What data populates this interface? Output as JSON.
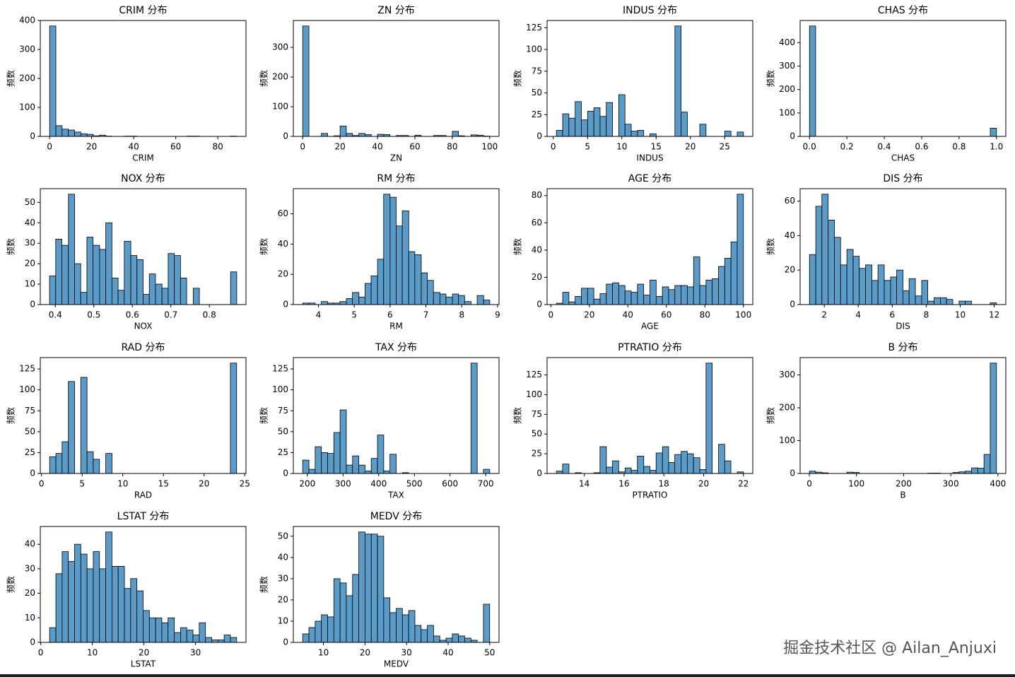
{
  "chart_data": [
    {
      "type": "histogram",
      "title": "CRIM 分布",
      "xlabel": "CRIM",
      "ylabel": "频数",
      "color": "#5a9bc8",
      "bins": [
        0.01,
        2.97,
        5.94,
        8.9,
        11.87,
        14.84,
        17.8,
        20.77,
        23.73,
        26.7,
        29.66,
        32.63,
        35.59,
        38.56,
        41.53,
        44.49,
        47.46,
        50.42,
        53.39,
        56.35,
        59.32,
        62.29,
        65.25,
        68.22,
        71.18,
        74.15,
        77.11,
        80.08,
        83.05,
        86.01,
        88.98
      ],
      "values": [
        381,
        37,
        25,
        22,
        15,
        9,
        7,
        2,
        4,
        1,
        0,
        0,
        1,
        1,
        0,
        0,
        0,
        0,
        0,
        0,
        0,
        0,
        1,
        1,
        0,
        0,
        0,
        0,
        0,
        1
      ],
      "xlim": [
        -4.44,
        93.42
      ],
      "xticks": [
        0,
        20,
        40,
        60,
        80
      ],
      "ylim": [
        0,
        400
      ],
      "yticks": [
        0,
        100,
        200,
        300,
        400
      ]
    },
    {
      "type": "histogram",
      "title": "ZN 分布",
      "xlabel": "ZN",
      "ylabel": "频数",
      "color": "#5a9bc8",
      "bins": [
        0,
        3.33,
        6.67,
        10,
        13.33,
        16.67,
        20,
        23.33,
        26.67,
        30,
        33.33,
        36.67,
        40,
        43.33,
        46.67,
        50,
        53.33,
        56.67,
        60,
        63.33,
        66.67,
        70,
        73.33,
        76.67,
        80,
        83.33,
        86.67,
        90,
        93.33,
        96.67,
        100
      ],
      "values": [
        372,
        0,
        0,
        10,
        0,
        2,
        35,
        10,
        3,
        10,
        6,
        0,
        7,
        6,
        0,
        3,
        3,
        0,
        4,
        0,
        0,
        3,
        3,
        0,
        17,
        2,
        0,
        5,
        4,
        1
      ],
      "xlim": [
        -5,
        105
      ],
      "xticks": [
        0,
        20,
        40,
        60,
        80,
        100
      ],
      "ylim": [
        0,
        390.6
      ],
      "yticks": [
        0,
        100,
        200,
        300
      ]
    },
    {
      "type": "histogram",
      "title": "INDUS 分布",
      "xlabel": "INDUS",
      "ylabel": "频数",
      "color": "#5a9bc8",
      "bins": [
        0.46,
        1.37,
        2.28,
        3.19,
        4.1,
        5.01,
        5.92,
        6.83,
        7.73,
        8.64,
        9.55,
        10.46,
        11.37,
        12.28,
        13.19,
        14.1,
        15.01,
        15.92,
        16.83,
        17.74,
        18.65,
        19.56,
        20.47,
        21.37,
        22.28,
        23.19,
        24.1,
        25.01,
        25.92,
        26.83,
        27.74
      ],
      "values": [
        7,
        26,
        21,
        40,
        19,
        29,
        33,
        23,
        39,
        0,
        48,
        14,
        6,
        7,
        0,
        3,
        0,
        0,
        0,
        127,
        28,
        0,
        0,
        14,
        0,
        0,
        0,
        6,
        0,
        5
      ],
      "xlim": [
        -0.9,
        29.1
      ],
      "xticks": [
        0,
        5,
        10,
        15,
        20,
        25
      ],
      "ylim": [
        0,
        133.35
      ],
      "yticks": [
        0,
        25,
        50,
        75,
        100,
        125
      ]
    },
    {
      "type": "histogram",
      "title": "CHAS 分布",
      "xlabel": "CHAS",
      "ylabel": "频数",
      "color": "#5a9bc8",
      "bins": [
        0,
        0.033,
        0.067,
        0.1,
        0.133,
        0.167,
        0.2,
        0.233,
        0.267,
        0.3,
        0.333,
        0.367,
        0.4,
        0.433,
        0.467,
        0.5,
        0.533,
        0.567,
        0.6,
        0.633,
        0.667,
        0.7,
        0.733,
        0.767,
        0.8,
        0.833,
        0.867,
        0.9,
        0.933,
        0.967,
        1
      ],
      "values": [
        471,
        0,
        0,
        0,
        0,
        0,
        0,
        0,
        0,
        0,
        0,
        0,
        0,
        0,
        0,
        0,
        0,
        0,
        0,
        0,
        0,
        0,
        0,
        0,
        0,
        0,
        0,
        0,
        0,
        35
      ],
      "xlim": [
        -0.05,
        1.05
      ],
      "xticks": [
        {
          "value": 0,
          "label": "0.0"
        },
        0.2,
        0.4,
        0.6,
        0.8,
        {
          "value": 1,
          "label": "1.0"
        }
      ],
      "ylim": [
        0,
        494.55
      ],
      "yticks": [
        0,
        100,
        200,
        300,
        400
      ]
    },
    {
      "type": "histogram",
      "title": "NOX 分布",
      "xlabel": "NOX",
      "ylabel": "频数",
      "color": "#5a9bc8",
      "bins": [
        0.385,
        0.401,
        0.417,
        0.434,
        0.45,
        0.466,
        0.482,
        0.498,
        0.515,
        0.531,
        0.547,
        0.563,
        0.579,
        0.596,
        0.612,
        0.628,
        0.644,
        0.66,
        0.677,
        0.693,
        0.709,
        0.725,
        0.741,
        0.758,
        0.774,
        0.79,
        0.806,
        0.822,
        0.839,
        0.855,
        0.871
      ],
      "values": [
        14,
        32,
        29,
        54,
        20,
        6,
        33,
        29,
        27,
        40,
        13,
        7,
        31,
        24,
        22,
        5,
        15,
        10,
        8,
        25,
        24,
        13,
        0,
        8,
        0,
        0,
        0,
        0,
        0,
        16
      ],
      "xlim": [
        0.361,
        0.895
      ],
      "xticks": [
        0.4,
        0.5,
        0.6,
        0.7,
        0.8
      ],
      "ylim": [
        0,
        56.7
      ],
      "yticks": [
        0,
        10,
        20,
        30,
        40,
        50
      ]
    },
    {
      "type": "histogram",
      "title": "RM 分布",
      "xlabel": "RM",
      "ylabel": "频数",
      "color": "#5a9bc8",
      "bins": [
        3.56,
        3.74,
        3.91,
        4.08,
        4.26,
        4.43,
        4.6,
        4.78,
        4.95,
        5.13,
        5.3,
        5.47,
        5.65,
        5.82,
        6.0,
        6.17,
        6.34,
        6.52,
        6.69,
        6.87,
        7.04,
        7.21,
        7.39,
        7.56,
        7.74,
        7.91,
        8.08,
        8.26,
        8.43,
        8.61,
        8.78
      ],
      "values": [
        1,
        1,
        0,
        2,
        1,
        1,
        2,
        4,
        8,
        5,
        14,
        19,
        30,
        73,
        71,
        52,
        62,
        35,
        33,
        21,
        16,
        8,
        7,
        5,
        7,
        6,
        2,
        0,
        6,
        3
      ],
      "xlim": [
        3.3,
        9.04
      ],
      "xticks": [
        4,
        5,
        6,
        7,
        8,
        9
      ],
      "ylim": [
        0,
        76.65
      ],
      "yticks": [
        0,
        20,
        40,
        60
      ]
    },
    {
      "type": "histogram",
      "title": "AGE 分布",
      "xlabel": "AGE",
      "ylabel": "频数",
      "color": "#5a9bc8",
      "bins": [
        2.9,
        6.14,
        9.37,
        12.61,
        15.85,
        19.08,
        22.32,
        25.56,
        28.79,
        32.03,
        35.27,
        38.5,
        41.74,
        44.98,
        48.21,
        51.45,
        54.69,
        57.92,
        61.16,
        64.4,
        67.63,
        70.87,
        74.11,
        77.34,
        80.58,
        83.82,
        87.05,
        90.29,
        93.53,
        96.76,
        100
      ],
      "values": [
        1,
        9,
        2,
        6,
        12,
        12,
        4,
        8,
        15,
        16,
        14,
        10,
        9,
        15,
        7,
        18,
        6,
        13,
        11,
        14,
        14,
        13,
        35,
        14,
        18,
        19,
        28,
        34,
        46,
        81
      ],
      "xlim": [
        -1.96,
        104.86
      ],
      "xticks": [
        0,
        20,
        40,
        60,
        80,
        100
      ],
      "ylim": [
        0,
        85.05
      ],
      "yticks": [
        0,
        20,
        40,
        60,
        80
      ]
    },
    {
      "type": "histogram",
      "title": "DIS 分布",
      "xlabel": "DIS",
      "ylabel": "频数",
      "color": "#5a9bc8",
      "bins": [
        1.13,
        1.5,
        1.86,
        2.23,
        2.6,
        2.96,
        3.33,
        3.7,
        4.06,
        4.43,
        4.8,
        5.16,
        5.53,
        5.9,
        6.26,
        6.63,
        6.99,
        7.36,
        7.73,
        8.09,
        8.46,
        8.83,
        9.19,
        9.56,
        9.93,
        10.29,
        10.66,
        11.03,
        11.39,
        11.76,
        12.13
      ],
      "values": [
        29,
        57,
        64,
        49,
        39,
        23,
        32,
        28,
        21,
        23,
        14,
        23,
        14,
        16,
        20,
        8,
        15,
        5,
        14,
        2,
        4,
        4,
        3,
        0,
        2,
        2,
        0,
        0,
        0,
        1
      ],
      "xlim": [
        0.58,
        12.68
      ],
      "xticks": [
        2,
        4,
        6,
        8,
        10,
        12
      ],
      "ylim": [
        0,
        67.2
      ],
      "yticks": [
        0,
        20,
        40,
        60
      ]
    },
    {
      "type": "histogram",
      "title": "RAD 分布",
      "xlabel": "RAD",
      "ylabel": "频数",
      "color": "#5a9bc8",
      "bins": [
        1,
        1.77,
        2.53,
        3.3,
        4.07,
        4.83,
        5.6,
        6.37,
        7.13,
        7.9,
        8.67,
        9.43,
        10.2,
        10.97,
        11.73,
        12.5,
        13.27,
        14.03,
        14.8,
        15.57,
        16.33,
        17.1,
        17.87,
        18.63,
        19.4,
        20.17,
        20.93,
        21.7,
        22.47,
        23.23,
        24
      ],
      "values": [
        20,
        24,
        38,
        110,
        0,
        115,
        26,
        17,
        0,
        24,
        0,
        0,
        0,
        0,
        0,
        0,
        0,
        0,
        0,
        0,
        0,
        0,
        0,
        0,
        0,
        0,
        0,
        0,
        0,
        132
      ],
      "xlim": [
        -0.15,
        25.15
      ],
      "xticks": [
        0,
        5,
        10,
        15,
        20,
        25
      ],
      "ylim": [
        0,
        138.6
      ],
      "yticks": [
        0,
        25,
        50,
        75,
        100,
        125
      ]
    },
    {
      "type": "histogram",
      "title": "TAX 分布",
      "xlabel": "TAX",
      "ylabel": "频数",
      "color": "#5a9bc8",
      "bins": [
        187,
        204.5,
        221.9,
        239.4,
        256.9,
        274.3,
        291.8,
        309.3,
        326.7,
        344.2,
        361.7,
        379.1,
        396.6,
        414.1,
        431.5,
        449,
        466.5,
        483.9,
        501.4,
        518.9,
        536.3,
        553.8,
        571.3,
        588.7,
        606.2,
        623.7,
        641.1,
        658.6,
        676.1,
        693.5,
        711
      ],
      "values": [
        16,
        5,
        32,
        25,
        24,
        49,
        76,
        10,
        21,
        10,
        3,
        18,
        46,
        3,
        23,
        0,
        1,
        0,
        0,
        0,
        0,
        0,
        0,
        0,
        0,
        0,
        0,
        132,
        0,
        5
      ],
      "xlim": [
        160.8,
        737.2
      ],
      "xticks": [
        200,
        300,
        400,
        500,
        600,
        700
      ],
      "ylim": [
        0,
        138.6
      ],
      "yticks": [
        0,
        25,
        50,
        75,
        100,
        125
      ]
    },
    {
      "type": "histogram",
      "title": "PTRATIO 分布",
      "xlabel": "PTRATIO",
      "ylabel": "频数",
      "color": "#5a9bc8",
      "bins": [
        12.6,
        12.91,
        13.23,
        13.54,
        13.85,
        14.17,
        14.48,
        14.79,
        15.11,
        15.42,
        15.73,
        16.05,
        16.36,
        16.67,
        16.99,
        17.3,
        17.61,
        17.93,
        18.24,
        18.55,
        18.87,
        19.18,
        19.49,
        19.81,
        20.12,
        20.43,
        20.75,
        21.06,
        21.37,
        21.69,
        22
      ],
      "values": [
        3,
        12,
        0,
        1,
        0,
        0,
        1,
        34,
        8,
        16,
        2,
        7,
        4,
        22,
        9,
        4,
        26,
        34,
        14,
        24,
        28,
        25,
        20,
        5,
        140,
        0,
        37,
        16,
        0,
        2
      ],
      "xlim": [
        12.13,
        22.47
      ],
      "xticks": [
        14,
        16,
        18,
        20,
        22
      ],
      "ylim": [
        0,
        147
      ],
      "yticks": [
        0,
        25,
        50,
        75,
        100,
        125
      ]
    },
    {
      "type": "histogram",
      "title": "B 分布",
      "xlabel": "B",
      "ylabel": "频数",
      "color": "#5a9bc8",
      "bins": [
        0.32,
        13.54,
        26.76,
        39.98,
        53.2,
        66.42,
        79.64,
        92.86,
        106.08,
        119.3,
        132.51,
        145.73,
        158.95,
        172.17,
        185.39,
        198.61,
        211.83,
        225.05,
        238.27,
        251.49,
        264.71,
        277.93,
        291.15,
        304.37,
        317.59,
        330.81,
        344.03,
        357.25,
        370.47,
        383.68,
        396.9
      ],
      "values": [
        7,
        4,
        2,
        0,
        0,
        0,
        4,
        3,
        0,
        0,
        0,
        0,
        0,
        0,
        0,
        0,
        0,
        0,
        0,
        1,
        1,
        0,
        0,
        3,
        5,
        7,
        17,
        16,
        58,
        336
      ],
      "xlim": [
        -19.51,
        416.73
      ],
      "xticks": [
        0,
        100,
        200,
        300,
        400
      ],
      "ylim": [
        0,
        352.8
      ],
      "yticks": [
        0,
        100,
        200,
        300
      ]
    },
    {
      "type": "histogram",
      "title": "LSTAT 分布",
      "xlabel": "LSTAT",
      "ylabel": "频数",
      "color": "#5a9bc8",
      "bins": [
        1.73,
        2.94,
        4.15,
        5.35,
        6.56,
        7.77,
        8.98,
        10.19,
        11.39,
        12.6,
        13.81,
        15.02,
        16.23,
        17.43,
        18.64,
        19.85,
        21.06,
        22.27,
        23.47,
        24.68,
        25.89,
        27.1,
        28.31,
        29.51,
        30.72,
        31.93,
        33.14,
        34.35,
        35.55,
        36.76,
        37.97
      ],
      "values": [
        6,
        28,
        37,
        33,
        40,
        36,
        30,
        37,
        30,
        45,
        31,
        31,
        22,
        26,
        21,
        13,
        10,
        10,
        8,
        10,
        4,
        6,
        5,
        3,
        8,
        2,
        1,
        1,
        3,
        2
      ],
      "xlim": [
        -0.08,
        39.78
      ],
      "xticks": [
        0,
        10,
        20,
        30
      ],
      "ylim": [
        0,
        47.25
      ],
      "yticks": [
        0,
        10,
        20,
        30,
        40
      ]
    },
    {
      "type": "histogram",
      "title": "MEDV 分布",
      "xlabel": "MEDV",
      "ylabel": "频数",
      "color": "#5a9bc8",
      "bins": [
        5,
        6.5,
        8,
        9.5,
        11,
        12.5,
        14,
        15.5,
        17,
        18.5,
        20,
        21.5,
        23,
        24.5,
        26,
        27.5,
        29,
        30.5,
        32,
        33.5,
        35,
        36.5,
        38,
        39.5,
        41,
        42.5,
        44,
        45.5,
        47,
        48.5,
        50
      ],
      "values": [
        4,
        7,
        10,
        13,
        12,
        30,
        28,
        22,
        32,
        52,
        51,
        51,
        50,
        21,
        14,
        16,
        13,
        15,
        8,
        6,
        8,
        3,
        1,
        2,
        4,
        3,
        2,
        1,
        0,
        18
      ],
      "xlim": [
        2.75,
        52.25
      ],
      "xticks": [
        10,
        20,
        30,
        40,
        50
      ],
      "ylim": [
        0,
        54.6
      ],
      "yticks": [
        0,
        10,
        20,
        30,
        40,
        50
      ]
    }
  ],
  "watermark": "掘金技术社区 @ Ailan_Anjuxi"
}
